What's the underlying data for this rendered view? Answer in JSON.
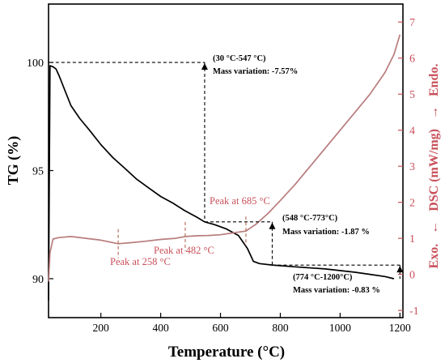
{
  "colors": {
    "tg": "#000000",
    "dsc": "#c8505a",
    "dsc_line": "#b87c7c",
    "marker": "#b0684f"
  },
  "chart_data": {
    "type": "line",
    "xlabel": "Temperature (°C)",
    "ylabel_left": "TG (%)",
    "ylabel_right": {
      "exo": "Exo.",
      "arrow_down": "←",
      "dsc": "DSC (mW/mg)",
      "arrow_up": "→",
      "endo": "Endo."
    },
    "x_ticks": [
      200,
      400,
      600,
      800,
      1000,
      1200
    ],
    "xlim": [
      25,
      1210
    ],
    "left_ticks": [
      90,
      95,
      100
    ],
    "left_ylim": [
      88.2,
      102.7
    ],
    "right_ticks": [
      -1,
      0,
      1,
      2,
      3,
      4,
      5,
      6,
      7
    ],
    "right_ylim": [
      -1.2,
      7.5
    ],
    "series": [
      {
        "axis": "left",
        "x": [
          25,
          30,
          40,
          50,
          60,
          80,
          100,
          130,
          160,
          200,
          240,
          280,
          320,
          360,
          400,
          440,
          480,
          520,
          547,
          580,
          620,
          660,
          690,
          710,
          730,
          773,
          850,
          950,
          1050,
          1100,
          1150,
          1180
        ],
        "y": [
          89.0,
          99.85,
          99.8,
          99.7,
          99.4,
          98.7,
          98.0,
          97.4,
          96.9,
          96.2,
          95.6,
          95.1,
          94.6,
          94.2,
          93.8,
          93.5,
          93.15,
          92.85,
          92.63,
          92.5,
          92.3,
          92.0,
          91.4,
          90.8,
          90.7,
          90.63,
          90.55,
          90.45,
          90.3,
          90.2,
          90.1,
          90.0
        ]
      },
      {
        "axis": "right",
        "x": [
          25,
          30,
          40,
          60,
          100,
          150,
          200,
          258,
          300,
          350,
          400,
          450,
          482,
          520,
          560,
          600,
          640,
          685,
          720,
          760,
          800,
          850,
          900,
          950,
          1000,
          1050,
          1100,
          1150,
          1180,
          1200
        ],
        "y": [
          -0.2,
          0.6,
          0.98,
          1.02,
          1.05,
          1.0,
          0.95,
          0.85,
          0.88,
          0.92,
          0.97,
          1.0,
          1.05,
          1.07,
          1.08,
          1.1,
          1.15,
          1.2,
          1.4,
          1.7,
          2.05,
          2.5,
          3.0,
          3.5,
          4.0,
          4.5,
          5.0,
          5.6,
          6.1,
          6.65
        ]
      }
    ],
    "annotations": {
      "a1_range": "(30 °C-547 °C)",
      "a1_mass": "Mass variation: -7.57%",
      "a2_range": "(548 °C-773°C)",
      "a2_mass": "Mass variation: -1.87 %",
      "a3_range": "(774 °C-1200°C)",
      "a3_mass": "Mass variation: -0.83 %",
      "peak1": "Peak at 258 °C",
      "peak2": "Peak at 482 °C",
      "peak3": "Peak at 685 °C"
    }
  }
}
